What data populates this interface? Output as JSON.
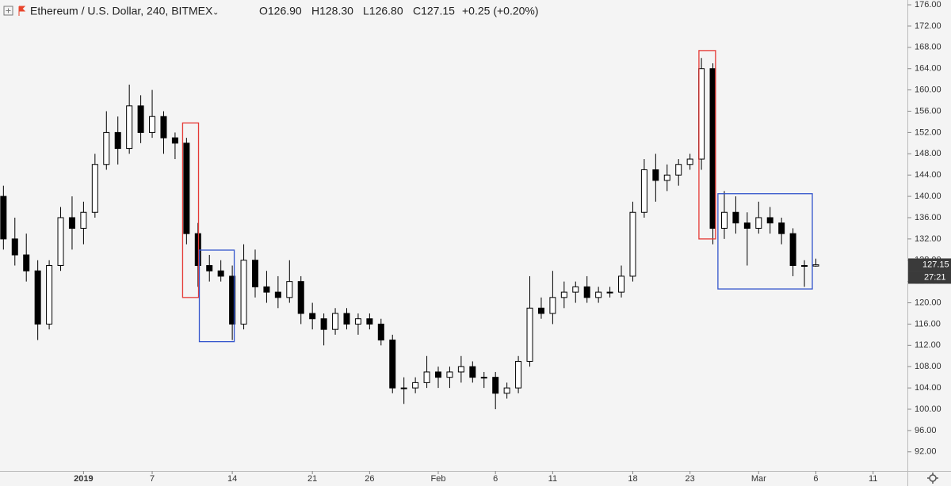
{
  "chart_data": {
    "type": "candlestick",
    "header": {
      "symbol": "Ethereum / U.S. Dollar, 240, BITMEX",
      "open_text": "O126.90",
      "high_text": "H128.30",
      "low_text": "L126.80",
      "close_text": "C127.15",
      "change_text": "+0.25 (+0.20%)"
    },
    "countdown": "27:21",
    "x": [
      -7,
      -6,
      -5,
      -4,
      -3,
      -2,
      -1,
      0,
      1,
      2,
      3,
      4,
      5,
      6,
      7,
      8,
      9,
      10,
      11,
      12,
      13,
      14,
      15,
      16,
      17,
      18,
      19,
      20,
      21,
      22,
      23,
      24,
      25,
      26,
      27,
      28,
      29,
      30,
      31,
      32,
      33,
      34,
      35,
      36,
      37,
      38,
      39,
      40,
      41,
      42,
      43,
      44,
      45,
      46,
      47,
      48,
      49,
      50,
      51,
      52,
      53,
      54,
      55,
      56,
      57,
      58,
      59,
      60,
      61,
      62,
      63,
      64
    ],
    "open": [
      140,
      132,
      129,
      126,
      116,
      127,
      136,
      134,
      137,
      146,
      152,
      149,
      157,
      152,
      155,
      151,
      150,
      133,
      127,
      126,
      125,
      116,
      128,
      123,
      122,
      121,
      124,
      118,
      117,
      115,
      118,
      116,
      117,
      116,
      113,
      104,
      104,
      105,
      107,
      106,
      107,
      108,
      106,
      106,
      103,
      104,
      109,
      119,
      118,
      121,
      122,
      123,
      121,
      122,
      122,
      125,
      137,
      145,
      143,
      144,
      146,
      147,
      164,
      134,
      137,
      135,
      134,
      136,
      135,
      133,
      127,
      126.9
    ],
    "high": [
      142,
      136,
      133,
      128,
      128,
      138,
      140,
      139,
      148,
      156,
      155,
      161,
      159,
      160,
      156,
      152,
      151,
      135,
      129,
      128,
      127,
      131,
      130,
      126,
      125,
      128,
      125,
      120,
      118,
      119,
      119,
      118,
      118,
      117,
      114,
      106,
      106,
      110,
      108,
      108,
      110,
      109,
      107,
      107,
      105,
      110,
      125,
      121,
      126,
      124,
      124,
      125,
      123,
      123,
      127,
      139,
      147,
      148,
      146,
      147,
      148,
      166,
      165,
      141,
      140,
      137,
      139,
      138,
      136,
      134,
      128,
      128.3
    ],
    "low": [
      130,
      127,
      124,
      113,
      115,
      126,
      130,
      131,
      136,
      145,
      146,
      148,
      150,
      151,
      148,
      147,
      131,
      123,
      124,
      124,
      113,
      115,
      121,
      120,
      119,
      120,
      116,
      115,
      112,
      114,
      115,
      114,
      115,
      112,
      103,
      101,
      103,
      104,
      104,
      104,
      105,
      105,
      104,
      100,
      102,
      103,
      108,
      117,
      116,
      119,
      120,
      120,
      120,
      121,
      121,
      124,
      136,
      139,
      141,
      142,
      145,
      145,
      131,
      132,
      133,
      127,
      133,
      133,
      131,
      125,
      123,
      126.8
    ],
    "close": [
      132,
      129,
      126,
      116,
      127,
      136,
      134,
      137,
      146,
      152,
      149,
      157,
      152,
      155,
      151,
      150,
      133,
      127,
      126,
      125,
      116,
      128,
      123,
      122,
      121,
      124,
      118,
      117,
      115,
      118,
      116,
      117,
      116,
      113,
      104,
      104,
      105,
      107,
      106,
      107,
      108,
      106,
      106,
      103,
      104,
      109,
      119,
      118,
      121,
      122,
      123,
      121,
      122,
      122,
      125,
      137,
      145,
      143,
      144,
      146,
      147,
      164,
      134,
      137,
      135,
      134,
      136,
      135,
      133,
      127,
      126.9,
      127.15
    ],
    "up_color": "#ffffff",
    "down_color": "#000000",
    "wick_color": "#000000",
    "xlim": [
      -7.3,
      72
    ],
    "xticks": [
      {
        "value": 0,
        "label": "2019"
      },
      {
        "value": 6,
        "label": "7"
      },
      {
        "value": 13,
        "label": "14"
      },
      {
        "value": 20,
        "label": "21"
      },
      {
        "value": 25,
        "label": "26"
      },
      {
        "value": 31,
        "label": "Feb"
      },
      {
        "value": 36,
        "label": "6"
      },
      {
        "value": 41,
        "label": "11"
      },
      {
        "value": 48,
        "label": "18"
      },
      {
        "value": 53,
        "label": "23"
      },
      {
        "value": 59,
        "label": "Mar"
      },
      {
        "value": 64,
        "label": "6"
      },
      {
        "value": 69,
        "label": "11"
      }
    ],
    "ylim": [
      88.4,
      176.9
    ],
    "yticks": [
      {
        "value": 92,
        "label": "92.00"
      },
      {
        "value": 96,
        "label": "96.00"
      },
      {
        "value": 100,
        "label": "100.00"
      },
      {
        "value": 104,
        "label": "104.00"
      },
      {
        "value": 108,
        "label": "108.00"
      },
      {
        "value": 112,
        "label": "112.00"
      },
      {
        "value": 116,
        "label": "116.00"
      },
      {
        "value": 120,
        "label": "120.00"
      },
      {
        "value": 124,
        "label": "124.00"
      },
      {
        "value": 128,
        "label": "128.00"
      },
      {
        "value": 132,
        "label": "132.00"
      },
      {
        "value": 136,
        "label": "136.00"
      },
      {
        "value": 140,
        "label": "140.00"
      },
      {
        "value": 144,
        "label": "144.00"
      },
      {
        "value": 148,
        "label": "148.00"
      },
      {
        "value": 152,
        "label": "152.00"
      },
      {
        "value": 156,
        "label": "156.00"
      },
      {
        "value": 160,
        "label": "160.00"
      },
      {
        "value": 164,
        "label": "164.00"
      },
      {
        "value": 168,
        "label": "168.00"
      },
      {
        "value": 172,
        "label": "172.00"
      },
      {
        "value": 176,
        "label": "176.00"
      }
    ],
    "shapes": [
      {
        "color": "#e53935",
        "x": [
          8.66,
          10.05
        ],
        "y": [
          121.0,
          153.8
        ]
      },
      {
        "color": "#3355cc",
        "x": [
          10.12,
          13.17
        ],
        "y": [
          112.7,
          129.9
        ]
      },
      {
        "color": "#e53935",
        "x": [
          53.78,
          55.23
        ],
        "y": [
          132.0,
          167.4
        ]
      },
      {
        "color": "#3355cc",
        "x": [
          55.44,
          63.69
        ],
        "y": [
          122.6,
          140.5
        ]
      }
    ]
  }
}
